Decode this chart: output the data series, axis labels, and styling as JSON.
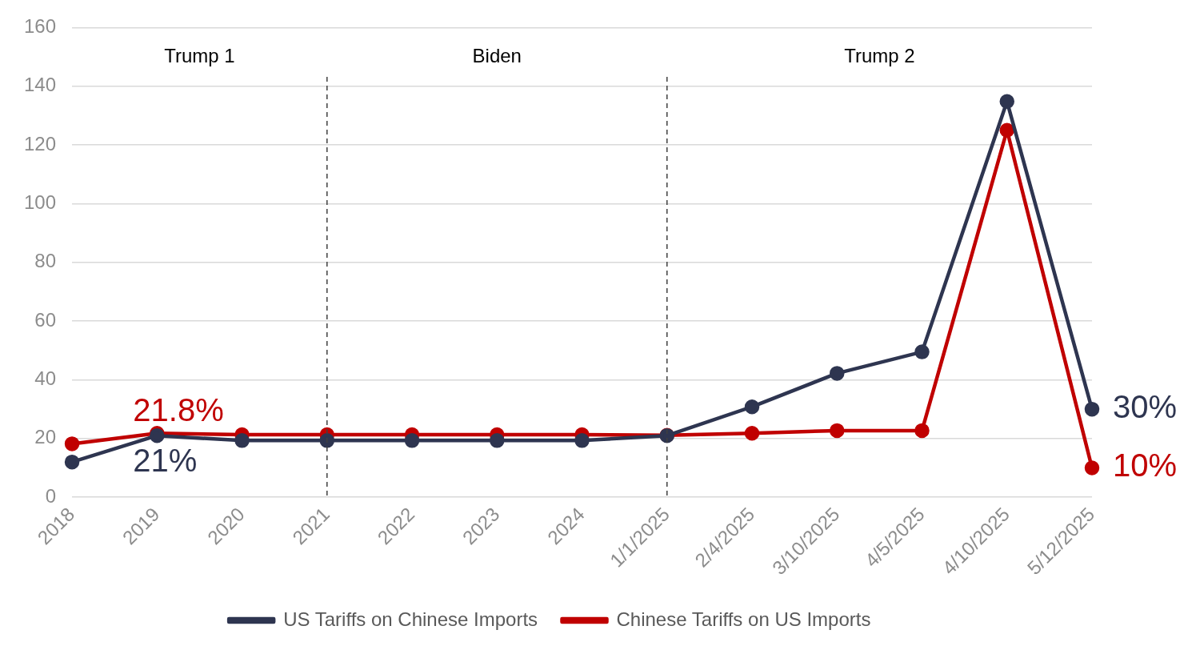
{
  "chart_data": {
    "type": "line",
    "categories": [
      "2018",
      "2019",
      "2020",
      "2021",
      "2022",
      "2023",
      "2024",
      "1/1/2025",
      "2/4/2025",
      "3/10/2025",
      "4/5/2025",
      "4/10/2025",
      "5/12/2025"
    ],
    "series": [
      {
        "name": "US Tariffs on Chinese Imports",
        "color": "#2e3550",
        "values": [
          12,
          21,
          19.3,
          19.3,
          19.3,
          19.3,
          19.3,
          21,
          30.8,
          42.2,
          49.5,
          134.8,
          30
        ],
        "value_labels": [
          null,
          "21%",
          null,
          null,
          null,
          null,
          null,
          null,
          null,
          null,
          null,
          null,
          "30%"
        ]
      },
      {
        "name": "Chinese Tariffs on US Imports",
        "color": "#c00000",
        "values": [
          18.2,
          21.8,
          21.3,
          21.3,
          21.3,
          21.3,
          21.3,
          21.1,
          21.8,
          22.7,
          22.7,
          125,
          10
        ],
        "value_labels": [
          null,
          "21.8%",
          null,
          null,
          null,
          null,
          null,
          null,
          null,
          null,
          null,
          null,
          "10%"
        ]
      }
    ],
    "ylim": [
      0,
      160
    ],
    "yticks": [
      0,
      20,
      40,
      60,
      80,
      100,
      120,
      140,
      160
    ],
    "grid": "y",
    "legend": "bottom",
    "marker": "circle",
    "line_style": "solid",
    "ref_lines": [
      {
        "axis": "x",
        "value": "2021",
        "line_style": "dashed",
        "color": "#404040"
      },
      {
        "axis": "x",
        "value": "1/1/2025",
        "line_style": "dashed",
        "color": "#404040"
      }
    ],
    "annotations": [
      "Trump 1",
      "Biden",
      "Trump 2"
    ]
  }
}
